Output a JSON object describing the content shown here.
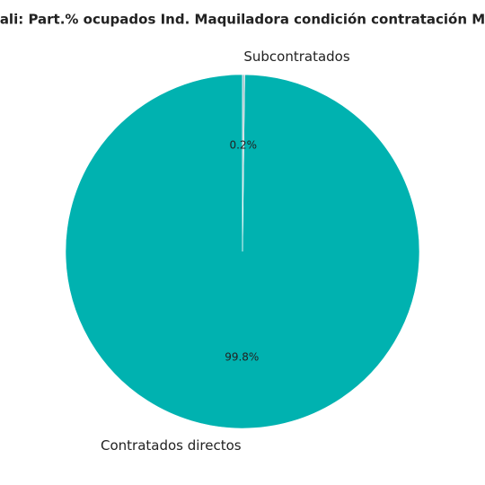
{
  "chart_data": {
    "type": "pie",
    "title": "ali: Part.% ocupados Ind. Maquiladora condición contratación M",
    "categories": [
      "Contratados directos",
      "Subcontratados"
    ],
    "values": [
      99.8,
      0.2
    ],
    "value_labels": [
      "99.8%",
      "0.2%"
    ],
    "colors": [
      "#00b2b0",
      "#a9c4cc"
    ]
  }
}
